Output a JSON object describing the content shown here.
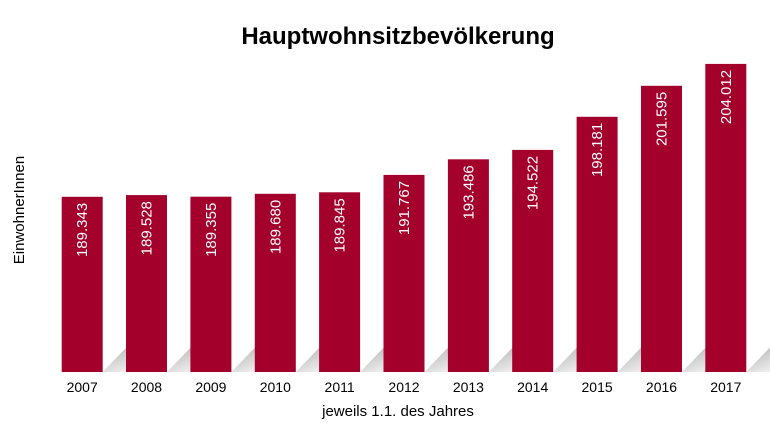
{
  "chart_data": {
    "type": "bar",
    "title": "Hauptwohnsitzbevölkerung",
    "xlabel": "jeweils 1.1. des Jahres",
    "ylabel": "EinwohnerInnen",
    "categories": [
      "2007",
      "2008",
      "2009",
      "2010",
      "2011",
      "2012",
      "2013",
      "2014",
      "2015",
      "2016",
      "2017"
    ],
    "values": [
      189343,
      189528,
      189355,
      189680,
      189845,
      191767,
      193486,
      194522,
      198181,
      201595,
      204012
    ],
    "value_labels": [
      "189.343",
      "189.528",
      "189.355",
      "189.680",
      "189.845",
      "191.767",
      "193.486",
      "194.522",
      "198.181",
      "201.595",
      "204.012"
    ],
    "ylim": [
      170000,
      205000
    ],
    "grid": false,
    "legend": "none",
    "colors": {
      "bar": "#a3002c",
      "bar_shadow": "#bdbdbd"
    }
  }
}
